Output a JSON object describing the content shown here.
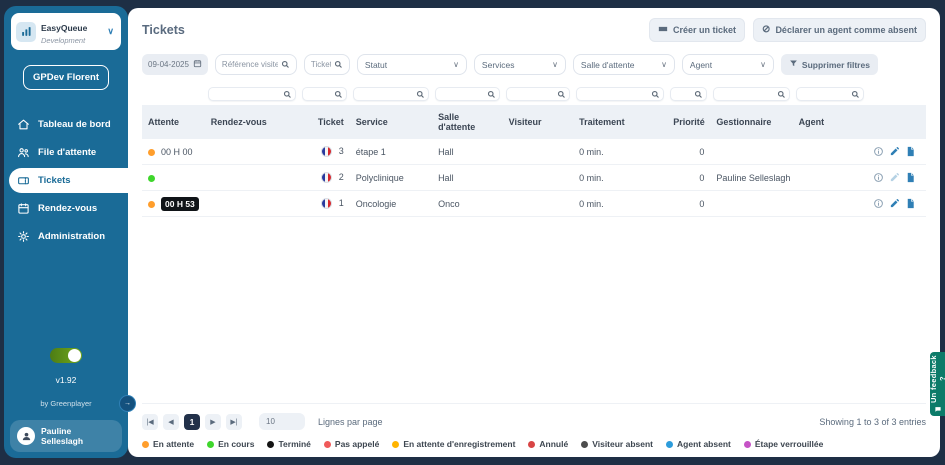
{
  "app": {
    "name": "EasyQueue",
    "environment": "Development",
    "workspace": "GPDev Florent",
    "version": "v1.92",
    "byline": "by Greenplayer",
    "user": "Pauline Selleslagh"
  },
  "sidebar": {
    "items": [
      {
        "id": "tableau-de-bord",
        "label": "Tableau de bord",
        "icon": "home-icon",
        "active": false
      },
      {
        "id": "file-dattente",
        "label": "File d'attente",
        "icon": "queue-icon",
        "active": false
      },
      {
        "id": "tickets",
        "label": "Tickets",
        "icon": "ticket-icon",
        "active": true
      },
      {
        "id": "rendez-vous",
        "label": "Rendez-vous",
        "icon": "calendar-icon",
        "active": false
      },
      {
        "id": "administration",
        "label": "Administration",
        "icon": "gear-icon",
        "active": false
      }
    ]
  },
  "header": {
    "title": "Tickets",
    "create_ticket_label": "Créer un ticket",
    "declare_absent_label": "Déclarer un agent comme absent"
  },
  "filters": {
    "date_value": "09-04-2025",
    "visitor_placeholder": "Référence visiteur",
    "ticket_placeholder": "Ticket",
    "status_label": "Statut",
    "services_label": "Services",
    "waiting_room_label": "Salle d'attente",
    "agent_label": "Agent",
    "clear_label": "Supprimer filtres"
  },
  "table": {
    "columns": [
      {
        "id": "attente",
        "label": "Attente",
        "searchable": false,
        "align": "left"
      },
      {
        "id": "rendez_vous",
        "label": "Rendez-vous",
        "searchable": true,
        "align": "left"
      },
      {
        "id": "ticket",
        "label": "Ticket",
        "searchable": true,
        "align": "right"
      },
      {
        "id": "service",
        "label": "Service",
        "searchable": true,
        "align": "left"
      },
      {
        "id": "salle",
        "label": "Salle d'attente",
        "searchable": true,
        "align": "left"
      },
      {
        "id": "visiteur",
        "label": "Visiteur",
        "searchable": true,
        "align": "left"
      },
      {
        "id": "traitement",
        "label": "Traitement",
        "searchable": true,
        "align": "left"
      },
      {
        "id": "priorite",
        "label": "Priorité",
        "searchable": true,
        "align": "right"
      },
      {
        "id": "gestionnaire",
        "label": "Gestionnaire",
        "searchable": true,
        "align": "left"
      },
      {
        "id": "agent",
        "label": "Agent",
        "searchable": true,
        "align": "left"
      },
      {
        "id": "actions",
        "label": "",
        "searchable": false,
        "align": "left"
      }
    ],
    "rows": [
      {
        "status": "en-attente",
        "status_color": "#FF9E2C",
        "wait": "00 H 00",
        "wait_badge": false,
        "rendez_vous": "",
        "ticket": "3",
        "service": "étape 1",
        "salle": "Hall",
        "visiteur": "",
        "traitement": "0 min.",
        "priorite": "0",
        "gestionnaire": "",
        "agent": "",
        "edit_enabled": true
      },
      {
        "status": "en-cours",
        "status_color": "#3FD62C",
        "wait": "",
        "wait_badge": false,
        "rendez_vous": "",
        "ticket": "2",
        "service": "Polyclinique",
        "salle": "Hall",
        "visiteur": "",
        "traitement": "0 min.",
        "priorite": "0",
        "gestionnaire": "Pauline Selleslagh",
        "agent": "",
        "edit_enabled": false
      },
      {
        "status": "en-attente",
        "status_color": "#FF9E2C",
        "wait": "00 H 53",
        "wait_badge": true,
        "rendez_vous": "",
        "ticket": "1",
        "service": "Oncologie",
        "salle": "Onco",
        "visiteur": "",
        "traitement": "0 min.",
        "priorite": "0",
        "gestionnaire": "",
        "agent": "",
        "edit_enabled": true
      }
    ]
  },
  "pagination": {
    "current_page": "1",
    "per_page": "10",
    "per_page_label": "Lignes par page",
    "showing_text": "Showing 1 to 3 of 3 entries"
  },
  "legend": [
    {
      "label": "En attente",
      "color": "#FF9E2C"
    },
    {
      "label": "En cours",
      "color": "#3FD62C"
    },
    {
      "label": "Terminé",
      "color": "#141414"
    },
    {
      "label": "Pas appelé",
      "color": "#F05A5A"
    },
    {
      "label": "En attente d'enregistrement",
      "color": "#FFB400"
    },
    {
      "label": "Annulé",
      "color": "#D84545"
    },
    {
      "label": "Visiteur absent",
      "color": "#4D4D4D"
    },
    {
      "label": "Agent absent",
      "color": "#2D9CDB"
    },
    {
      "label": "Étape verrouillée",
      "color": "#C653C6"
    }
  ],
  "feedback_label": "Un feedback ?"
}
